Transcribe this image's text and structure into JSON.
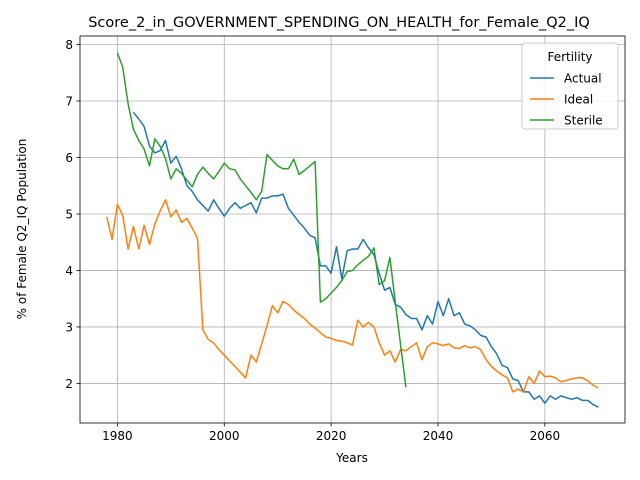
{
  "chart_data": {
    "type": "line",
    "title": "Score_2_in_GOVERNMENT_SPENDING_ON_HEALTH_for_Female_Q2_IQ",
    "xlabel": "Years",
    "ylabel": "% of Female Q2_IQ Population",
    "xlim": [
      1973,
      2075
    ],
    "ylim": [
      1.3,
      8.15
    ],
    "xticks": [
      1980,
      2000,
      2020,
      2040,
      2060
    ],
    "yticks": [
      2,
      3,
      4,
      5,
      6,
      7,
      8
    ],
    "grid": true,
    "legend": {
      "title": "Fertility",
      "placement": "top-right"
    },
    "series": [
      {
        "name": "Actual",
        "color": "#1f77b4",
        "x": [
          1983,
          1984,
          1985,
          1986,
          1987,
          1988,
          1989,
          1990,
          1991,
          1992,
          1993,
          1994,
          1995,
          1996,
          1997,
          1998,
          1999,
          2000,
          2001,
          2002,
          2003,
          2004,
          2005,
          2006,
          2007,
          2008,
          2009,
          2010,
          2011,
          2012,
          2013,
          2014,
          2015,
          2016,
          2017,
          2018,
          2019,
          2020,
          2021,
          2022,
          2023,
          2024,
          2025,
          2026,
          2027,
          2028,
          2029,
          2030,
          2031,
          2032,
          2033,
          2034,
          2035,
          2036,
          2037,
          2038,
          2039,
          2040,
          2041,
          2042,
          2043,
          2044,
          2045,
          2046,
          2047,
          2048,
          2049,
          2050,
          2051,
          2052,
          2053,
          2054,
          2055,
          2056,
          2057,
          2058,
          2059,
          2060,
          2061,
          2062,
          2063,
          2064,
          2065,
          2066,
          2067,
          2068,
          2069,
          2070
        ],
        "values": [
          6.8,
          6.68,
          6.55,
          6.2,
          6.08,
          6.12,
          6.3,
          5.9,
          6.02,
          5.8,
          5.5,
          5.4,
          5.25,
          5.15,
          5.05,
          5.25,
          5.1,
          4.96,
          5.1,
          5.2,
          5.1,
          5.15,
          5.2,
          5.02,
          5.28,
          5.28,
          5.32,
          5.32,
          5.35,
          5.1,
          4.98,
          4.85,
          4.75,
          4.62,
          4.58,
          4.08,
          4.08,
          3.95,
          4.42,
          3.85,
          4.35,
          4.38,
          4.38,
          4.55,
          4.4,
          4.28,
          3.95,
          3.65,
          3.7,
          3.4,
          3.35,
          3.22,
          3.15,
          3.15,
          2.95,
          3.2,
          3.05,
          3.45,
          3.2,
          3.5,
          3.2,
          3.25,
          3.05,
          3.02,
          2.95,
          2.85,
          2.82,
          2.65,
          2.52,
          2.32,
          2.28,
          2.08,
          2.05,
          1.85,
          1.85,
          1.72,
          1.78,
          1.65,
          1.78,
          1.72,
          1.78,
          1.75,
          1.72,
          1.75,
          1.7,
          1.7,
          1.63,
          1.58
        ]
      },
      {
        "name": "Ideal",
        "color": "#ff7f0e",
        "x": [
          1978,
          1979,
          1980,
          1981,
          1982,
          1983,
          1984,
          1985,
          1986,
          1987,
          1988,
          1989,
          1990,
          1991,
          1992,
          1993,
          1994,
          1995,
          1996,
          1997,
          1998,
          1999,
          2000,
          2001,
          2002,
          2003,
          2004,
          2005,
          2006,
          2007,
          2008,
          2009,
          2010,
          2011,
          2012,
          2013,
          2014,
          2015,
          2016,
          2017,
          2018,
          2019,
          2020,
          2021,
          2022,
          2023,
          2024,
          2025,
          2026,
          2027,
          2028,
          2029,
          2030,
          2031,
          2032,
          2033,
          2034,
          2035,
          2036,
          2037,
          2038,
          2039,
          2040,
          2041,
          2042,
          2043,
          2044,
          2045,
          2046,
          2047,
          2048,
          2049,
          2050,
          2051,
          2052,
          2053,
          2054,
          2055,
          2056,
          2057,
          2058,
          2059,
          2060,
          2061,
          2062,
          2063,
          2064,
          2065,
          2066,
          2067,
          2068,
          2069,
          2070
        ],
        "values": [
          4.95,
          4.55,
          5.17,
          4.98,
          4.38,
          4.78,
          4.38,
          4.8,
          4.46,
          4.82,
          5.05,
          5.25,
          4.95,
          5.07,
          4.85,
          4.92,
          4.75,
          4.57,
          2.95,
          2.78,
          2.72,
          2.6,
          2.5,
          2.4,
          2.3,
          2.2,
          2.1,
          2.5,
          2.38,
          2.7,
          3.02,
          3.38,
          3.25,
          3.45,
          3.4,
          3.3,
          3.22,
          3.15,
          3.05,
          2.98,
          2.9,
          2.82,
          2.8,
          2.76,
          2.75,
          2.72,
          2.68,
          3.12,
          3.0,
          3.08,
          3.0,
          2.72,
          2.5,
          2.58,
          2.38,
          2.6,
          2.58,
          2.65,
          2.72,
          2.42,
          2.65,
          2.72,
          2.7,
          2.67,
          2.7,
          2.63,
          2.62,
          2.67,
          2.63,
          2.65,
          2.6,
          2.42,
          2.3,
          2.22,
          2.15,
          2.1,
          1.85,
          1.9,
          1.85,
          2.12,
          2.0,
          2.22,
          2.12,
          2.13,
          2.1,
          2.03,
          2.05,
          2.08,
          2.1,
          2.1,
          2.05,
          1.97,
          1.92
        ]
      },
      {
        "name": "Sterile",
        "color": "#2ca02c",
        "x": [
          1980,
          1981,
          1982,
          1983,
          1984,
          1985,
          1986,
          1987,
          1988,
          1989,
          1990,
          1991,
          1992,
          1993,
          1994,
          1995,
          1996,
          1997,
          1998,
          1999,
          2000,
          2001,
          2002,
          2003,
          2004,
          2005,
          2006,
          2007,
          2008,
          2009,
          2010,
          2011,
          2012,
          2013,
          2014,
          2015,
          2016,
          2017,
          2018,
          2019,
          2020,
          2021,
          2022,
          2023,
          2024,
          2025,
          2026,
          2027,
          2028,
          2029,
          2030,
          2031,
          2032,
          2033,
          2034
        ],
        "values": [
          7.85,
          7.6,
          6.95,
          6.5,
          6.3,
          6.15,
          5.85,
          6.33,
          6.2,
          5.98,
          5.62,
          5.8,
          5.72,
          5.6,
          5.48,
          5.7,
          5.83,
          5.72,
          5.62,
          5.75,
          5.9,
          5.8,
          5.78,
          5.62,
          5.5,
          5.38,
          5.25,
          5.4,
          6.05,
          5.95,
          5.85,
          5.8,
          5.8,
          5.97,
          5.7,
          5.77,
          5.85,
          5.93,
          3.44,
          3.5,
          3.6,
          3.7,
          3.82,
          3.98,
          4.0,
          4.1,
          4.18,
          4.25,
          4.4,
          3.75,
          3.82,
          4.23,
          3.45,
          2.68,
          1.93
        ]
      }
    ]
  }
}
